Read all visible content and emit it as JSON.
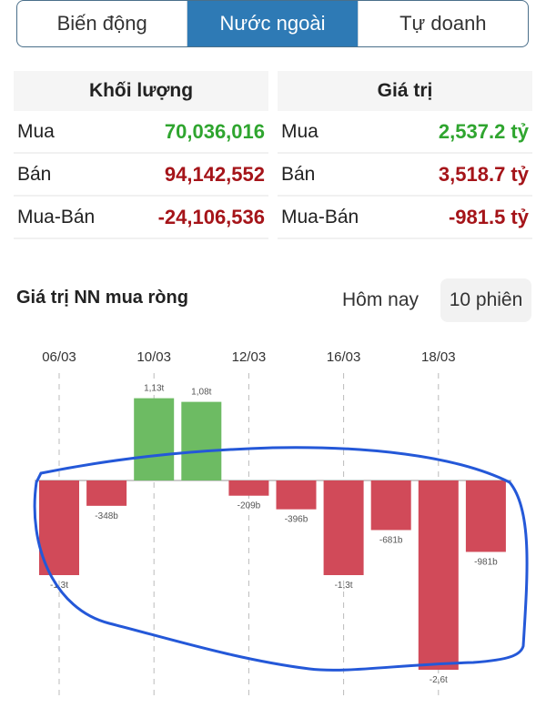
{
  "tabs": [
    {
      "label": "Biến động",
      "active": false
    },
    {
      "label": "Nước ngoài",
      "active": true
    },
    {
      "label": "Tự doanh",
      "active": false
    }
  ],
  "volume": {
    "title": "Khối lượng",
    "rows": [
      {
        "label": "Mua",
        "value": "70,036,016"
      },
      {
        "label": "Bán",
        "value": "94,142,552"
      },
      {
        "label": "Mua-Bán",
        "value": "-24,106,536"
      }
    ]
  },
  "value": {
    "title": "Giá trị",
    "rows": [
      {
        "label": "Mua",
        "value": "2,537.2 tỷ"
      },
      {
        "label": "Bán",
        "value": "3,518.7 tỷ"
      },
      {
        "label": "Mua-Bán",
        "value": "-981.5 tỷ"
      }
    ]
  },
  "section": {
    "title": "Giá trị NN mua ròng",
    "range_today": "Hôm nay",
    "range_10": "10 phiên",
    "selected": "10 phiên"
  },
  "colors": {
    "accent": "#2e7ab5",
    "positive": "#2fa52f",
    "negative": "#a51419",
    "bar_positive": "#6dbb63",
    "bar_negative": "#d14a59",
    "annotation": "#2458d8"
  },
  "chart_data": {
    "type": "bar",
    "unit": "billion VND",
    "values": [
      -1300,
      -348,
      1130,
      1080,
      -209,
      -396,
      -1300,
      -681,
      -2600,
      -981
    ],
    "data_labels": [
      "-1,3t",
      "-348b",
      "1,13t",
      "1,08t",
      "-209b",
      "-396b",
      "-1,3t",
      "-681b",
      "-2,6t",
      "-981b"
    ],
    "tick_labels": [
      "06/03",
      "",
      "10/03",
      "",
      "12/03",
      "",
      "16/03",
      "",
      "18/03",
      ""
    ],
    "grid": "vertical dashed at labeled dates",
    "annotation": "hand-drawn blue loop around negative bars"
  }
}
